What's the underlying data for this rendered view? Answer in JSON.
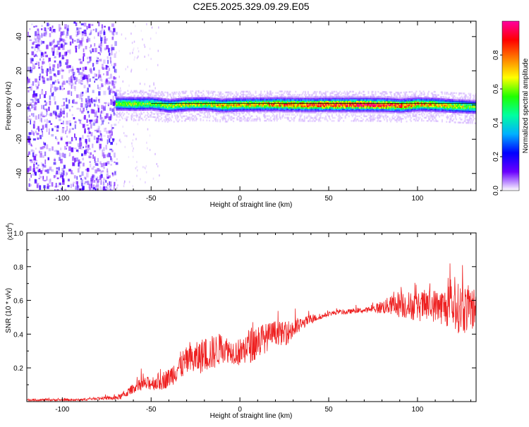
{
  "title": "C2E5.2025.329.09.29.E05",
  "colors": {
    "axis": "#000000",
    "snr_line": "#ee2020",
    "background": "#ffffff",
    "colormap_stops": [
      "#ffffff",
      "#6a00ff",
      "#0000ff",
      "#00b0ff",
      "#00ffa0",
      "#20ff00",
      "#ffff00",
      "#ff8000",
      "#ff0000",
      "#ff00a0"
    ]
  },
  "chart_data": [
    {
      "type": "heatmap",
      "title": "C2E5.2025.329.09.29.E05",
      "xlabel": "Height of straight line (km)",
      "ylabel": "Frequency (Hz)",
      "xlim": [
        -120,
        133
      ],
      "ylim": [
        -50,
        49
      ],
      "x_ticks": [
        -100,
        -50,
        0,
        50,
        100
      ],
      "y_ticks": [
        -40,
        -20,
        0,
        20,
        40
      ],
      "grid": false,
      "noise_region_x": [
        -120,
        -70
      ],
      "signal_ridge": {
        "x": [
          -70,
          -60,
          -50,
          -40,
          -30,
          -20,
          -10,
          0,
          10,
          20,
          30,
          40,
          50,
          60,
          70,
          80,
          90,
          100,
          110,
          120,
          133
        ],
        "center": [
          0.8,
          0.6,
          0.8,
          -0.5,
          0.4,
          0.6,
          -0.3,
          0.2,
          0.3,
          0.4,
          0.2,
          0.1,
          0.2,
          0.2,
          0.2,
          0.1,
          -0.4,
          0.4,
          0.1,
          -0.6,
          -1.2
        ],
        "peak": [
          0.55,
          0.6,
          0.55,
          0.6,
          0.65,
          0.65,
          0.7,
          0.7,
          0.72,
          0.78,
          0.8,
          0.85,
          0.88,
          0.9,
          0.92,
          0.9,
          0.82,
          0.78,
          0.72,
          0.65,
          0.55
        ]
      }
    },
    {
      "type": "colorbar",
      "label": "Normalized spectral amplitude",
      "range": [
        0,
        1
      ],
      "ticks": [
        0.0,
        0.2,
        0.4,
        0.6,
        0.8
      ]
    },
    {
      "type": "line",
      "xlabel": "Height of straight line (km)",
      "ylabel": "SNR (10 * v/v)",
      "multiplier_label": "(x10",
      "multiplier_exp": "4",
      "multiplier_close": ")",
      "xlim": [
        -120,
        133
      ],
      "ylim": [
        0,
        1.0
      ],
      "x_ticks": [
        -100,
        -50,
        0,
        50,
        100
      ],
      "y_ticks": [
        0.2,
        0.4,
        0.6,
        0.8,
        1.0
      ],
      "grid": false,
      "series": [
        {
          "x": [
            -120,
            -110,
            -100,
            -90,
            -80,
            -70,
            -65,
            -60,
            -55,
            -50,
            -45,
            -40,
            -35,
            -30,
            -25,
            -20,
            -15,
            -10,
            -5,
            0,
            5,
            10,
            15,
            20,
            25,
            30,
            35,
            40,
            45,
            50,
            55,
            60,
            65,
            70,
            75,
            80,
            85,
            90,
            95,
            100,
            105,
            110,
            115,
            120,
            125,
            133
          ],
          "mean": [
            0.01,
            0.01,
            0.01,
            0.01,
            0.02,
            0.02,
            0.04,
            0.08,
            0.1,
            0.11,
            0.12,
            0.14,
            0.2,
            0.24,
            0.25,
            0.28,
            0.29,
            0.32,
            0.3,
            0.29,
            0.33,
            0.36,
            0.38,
            0.41,
            0.4,
            0.43,
            0.46,
            0.49,
            0.5,
            0.52,
            0.53,
            0.53,
            0.54,
            0.54,
            0.55,
            0.56,
            0.57,
            0.58,
            0.57,
            0.56,
            0.57,
            0.57,
            0.56,
            0.56,
            0.55,
            0.55
          ],
          "amplitude": [
            0.01,
            0.01,
            0.01,
            0.01,
            0.01,
            0.02,
            0.03,
            0.04,
            0.06,
            0.06,
            0.08,
            0.08,
            0.12,
            0.12,
            0.14,
            0.15,
            0.15,
            0.13,
            0.1,
            0.12,
            0.15,
            0.16,
            0.12,
            0.1,
            0.1,
            0.1,
            0.05,
            0.04,
            0.02,
            0.02,
            0.02,
            0.02,
            0.02,
            0.02,
            0.03,
            0.06,
            0.08,
            0.12,
            0.12,
            0.12,
            0.14,
            0.14,
            0.16,
            0.2,
            0.22,
            0.18
          ]
        }
      ]
    }
  ]
}
